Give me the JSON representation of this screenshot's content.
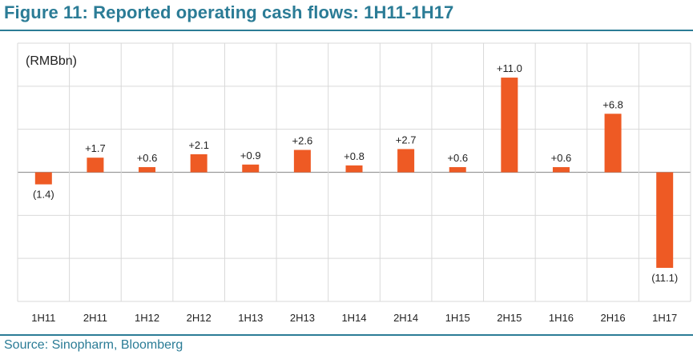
{
  "figure": {
    "title": "Figure 11: Reported operating cash flows: 1H11-1H17",
    "source": "Source: Sinopharm, Bloomberg",
    "accent_color": "#2b7c96"
  },
  "chart_data": {
    "type": "bar",
    "title": "Reported operating cash flows: 1H11-1H17",
    "ylabel": "(RMBbn)",
    "xlabel": "",
    "categories": [
      "1H11",
      "2H11",
      "1H12",
      "2H12",
      "1H13",
      "2H13",
      "1H14",
      "2H14",
      "1H15",
      "2H15",
      "1H16",
      "2H16",
      "1H17"
    ],
    "values": [
      -1.4,
      1.7,
      0.6,
      2.1,
      0.9,
      2.6,
      0.8,
      2.7,
      0.6,
      11.0,
      0.6,
      6.8,
      -11.1
    ],
    "data_labels": [
      "(1.4)",
      "+1.7",
      "+0.6",
      "+2.1",
      "+0.9",
      "+2.6",
      "+0.8",
      "+2.7",
      "+0.6",
      "+11.0",
      "+0.6",
      "+6.8",
      "(11.1)"
    ],
    "ylim": [
      -15,
      15
    ],
    "grid": true,
    "bar_color": "#ee5a24",
    "grid_color": "#d9d9d9"
  }
}
